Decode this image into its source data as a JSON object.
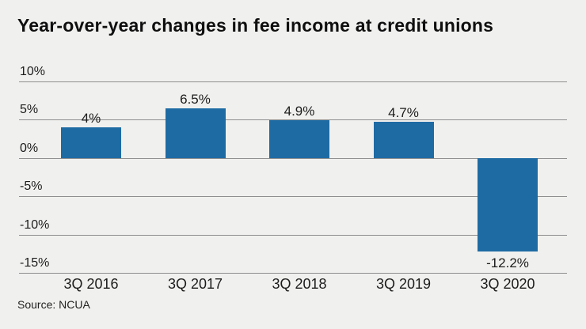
{
  "header": {
    "title": "Year-over-year changes in fee income at credit unions"
  },
  "footer": {
    "source": "Source: NCUA"
  },
  "chart_data": {
    "type": "bar",
    "title": "Year-over-year changes in fee income at credit unions",
    "categories": [
      "3Q 2016",
      "3Q 2017",
      "3Q 2018",
      "3Q 2019",
      "3Q 2020"
    ],
    "values": [
      4,
      6.5,
      4.9,
      4.7,
      -12.2
    ],
    "data_labels": [
      "4%",
      "6.5%",
      "4.9%",
      "4.7%",
      "-12.2%"
    ],
    "xlabel": "",
    "ylabel": "",
    "ylim": [
      -15,
      10
    ],
    "yticks": [
      {
        "value": 10,
        "label": "10%"
      },
      {
        "value": 5,
        "label": "5%"
      },
      {
        "value": 0,
        "label": "0%"
      },
      {
        "value": -5,
        "label": "-5%"
      },
      {
        "value": -10,
        "label": "-10%"
      },
      {
        "value": -15,
        "label": "-15%"
      }
    ],
    "grid": true,
    "legend": false,
    "source": "Source: NCUA",
    "colors": {
      "bar": "#1e6ba4",
      "gridline": "#8f8f8f",
      "background": "#f0f0ee",
      "text": "#1c1c1c"
    }
  }
}
